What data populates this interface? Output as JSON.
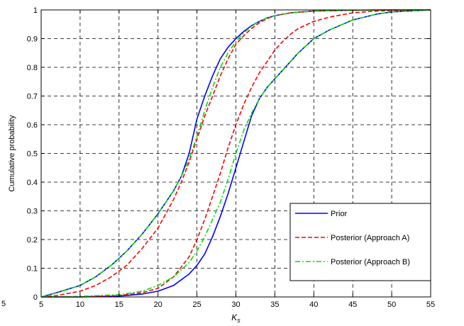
{
  "stray_label": "5",
  "chart_data": {
    "type": "line",
    "xlabel": "K",
    "xlabel_subscript": "s",
    "ylabel": "Cumulative probability",
    "xlim": [
      5,
      55
    ],
    "ylim": [
      0,
      1
    ],
    "xticks": [
      5,
      10,
      15,
      20,
      25,
      30,
      35,
      40,
      45,
      50,
      55
    ],
    "yticks": [
      0,
      0.1,
      0.2,
      0.3,
      0.4,
      0.5,
      0.6,
      0.7,
      0.8,
      0.9,
      1
    ],
    "grid": true,
    "legend_position": "lower-right",
    "series": [
      {
        "name": "Prior",
        "color": "#0000ff",
        "style": "solid",
        "x": [
          5,
          7,
          10,
          12,
          14,
          16,
          18,
          20,
          21,
          22,
          23,
          24,
          25,
          26,
          27,
          28,
          29,
          30,
          31,
          32,
          33,
          34,
          35,
          37,
          40,
          45,
          50,
          55
        ],
        "y": [
          0.0,
          0.015,
          0.04,
          0.07,
          0.11,
          0.16,
          0.22,
          0.29,
          0.33,
          0.37,
          0.42,
          0.5,
          0.62,
          0.7,
          0.77,
          0.83,
          0.87,
          0.9,
          0.925,
          0.945,
          0.96,
          0.972,
          0.98,
          0.99,
          0.996,
          0.999,
          1.0,
          1.0
        ]
      },
      {
        "name": "Prior",
        "color": "#0000ff",
        "style": "solid",
        "x": [
          5,
          10,
          15,
          18,
          20,
          22,
          24,
          25,
          26,
          27,
          28,
          29,
          30,
          31,
          32,
          33,
          34,
          35,
          36,
          38,
          40,
          42,
          45,
          48,
          50,
          55
        ],
        "y": [
          0.0,
          0.0,
          0.003,
          0.01,
          0.02,
          0.04,
          0.08,
          0.11,
          0.15,
          0.21,
          0.28,
          0.36,
          0.45,
          0.54,
          0.63,
          0.69,
          0.73,
          0.76,
          0.79,
          0.85,
          0.9,
          0.93,
          0.965,
          0.985,
          0.993,
          1.0
        ]
      },
      {
        "name": "Posterior (Approach A)",
        "color": "#ff0000",
        "style": "dashed",
        "x": [
          5,
          7,
          10,
          12,
          14,
          16,
          18,
          20,
          21,
          22,
          23,
          24,
          25,
          26,
          27,
          28,
          29,
          30,
          31,
          32,
          33,
          34,
          35,
          37,
          40,
          45,
          50,
          55
        ],
        "y": [
          0.0,
          0.005,
          0.02,
          0.04,
          0.07,
          0.11,
          0.17,
          0.24,
          0.29,
          0.34,
          0.4,
          0.47,
          0.55,
          0.63,
          0.7,
          0.77,
          0.83,
          0.88,
          0.91,
          0.935,
          0.955,
          0.97,
          0.98,
          0.99,
          0.996,
          0.999,
          1.0,
          1.0
        ]
      },
      {
        "name": "Posterior (Approach A)",
        "color": "#ff0000",
        "style": "dashed",
        "x": [
          5,
          10,
          15,
          18,
          20,
          22,
          24,
          25,
          26,
          27,
          28,
          29,
          30,
          31,
          32,
          33,
          34,
          35,
          36,
          37,
          38,
          40,
          42,
          45,
          48,
          50,
          55
        ],
        "y": [
          0.0,
          0.0,
          0.005,
          0.015,
          0.03,
          0.07,
          0.14,
          0.2,
          0.27,
          0.35,
          0.43,
          0.52,
          0.6,
          0.67,
          0.73,
          0.78,
          0.82,
          0.86,
          0.89,
          0.915,
          0.935,
          0.96,
          0.975,
          0.99,
          0.996,
          0.998,
          1.0
        ]
      },
      {
        "name": "Posterior (Approach B)",
        "color": "#00e000",
        "style": "dashdot",
        "x": [
          5,
          7,
          10,
          12,
          14,
          16,
          18,
          20,
          21,
          22,
          23,
          24,
          25,
          26,
          27,
          28,
          29,
          30,
          31,
          32,
          33,
          34,
          35,
          37,
          40,
          45,
          50,
          55
        ],
        "y": [
          0.0,
          0.014,
          0.04,
          0.07,
          0.11,
          0.16,
          0.22,
          0.29,
          0.33,
          0.37,
          0.42,
          0.48,
          0.56,
          0.65,
          0.73,
          0.8,
          0.85,
          0.89,
          0.92,
          0.943,
          0.96,
          0.972,
          0.98,
          0.99,
          0.996,
          0.999,
          1.0,
          1.0
        ]
      },
      {
        "name": "Posterior (Approach B)",
        "color": "#00e000",
        "style": "dashdot",
        "x": [
          5,
          10,
          15,
          18,
          20,
          22,
          24,
          25,
          26,
          27,
          28,
          29,
          30,
          31,
          32,
          33,
          34,
          35,
          36,
          38,
          40,
          42,
          45,
          48,
          50,
          55
        ],
        "y": [
          0.0,
          0.002,
          0.008,
          0.02,
          0.04,
          0.07,
          0.12,
          0.16,
          0.21,
          0.27,
          0.33,
          0.41,
          0.5,
          0.58,
          0.64,
          0.69,
          0.73,
          0.76,
          0.79,
          0.85,
          0.9,
          0.93,
          0.965,
          0.985,
          0.993,
          1.0
        ]
      }
    ],
    "legend": [
      {
        "label": "Prior",
        "color": "#0000ff",
        "style": "solid"
      },
      {
        "label": "Posterior (Approach A)",
        "color": "#ff0000",
        "style": "dashed"
      },
      {
        "label": "Posterior (Approach B)",
        "color": "#00e000",
        "style": "dashdot"
      }
    ]
  }
}
